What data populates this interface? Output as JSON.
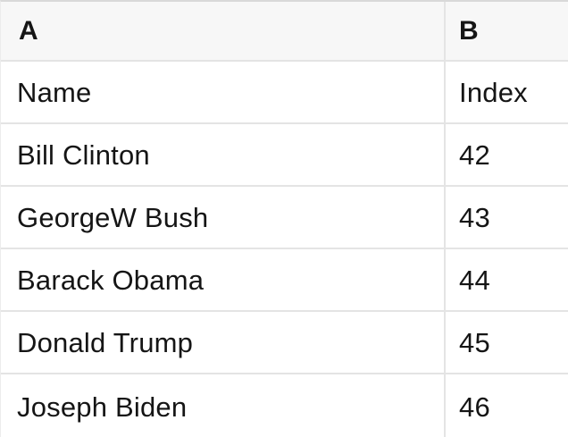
{
  "colors": {
    "header_bg": "#f7f7f7",
    "row_bg": "#ffffff",
    "grid_border": "#e4e4e4",
    "top_border": "#d9d9d9",
    "text": "#151515"
  },
  "table": {
    "column_headers": [
      "A",
      "B"
    ],
    "rows": [
      {
        "a": "Name",
        "b": "Index"
      },
      {
        "a": "Bill Clinton",
        "b": "42"
      },
      {
        "a": "GeorgeW Bush",
        "b": "43"
      },
      {
        "a": "Barack Obama",
        "b": "44"
      },
      {
        "a": "Donald Trump",
        "b": "45"
      },
      {
        "a": "Joseph Biden",
        "b": "46"
      }
    ]
  }
}
